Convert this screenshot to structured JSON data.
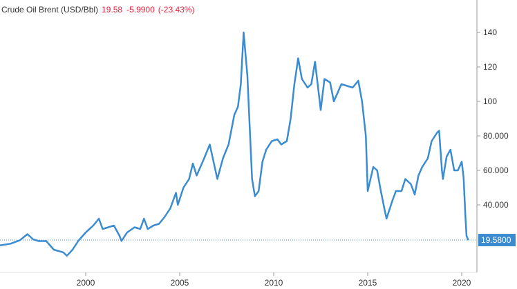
{
  "chart_data": {
    "type": "line",
    "title": "Crude Oil Brent (USD/Bbl)",
    "price": "19.58",
    "change": "-5.9900",
    "change_pct": "(-23.43%)",
    "last_label": "19.5800",
    "x": [
      1995.44,
      1996.0,
      1996.5,
      1996.9,
      1997.2,
      1997.5,
      1997.9,
      1998.3,
      1998.8,
      1999.0,
      1999.3,
      1999.6,
      2000.0,
      2000.4,
      2000.7,
      2000.9,
      2001.2,
      2001.5,
      2001.8,
      2001.9,
      2002.2,
      2002.6,
      2002.9,
      2003.1,
      2003.3,
      2003.6,
      2003.9,
      2004.2,
      2004.5,
      2004.8,
      2004.9,
      2005.2,
      2005.5,
      2005.7,
      2005.9,
      2006.3,
      2006.6,
      2006.9,
      2007.0,
      2007.3,
      2007.6,
      2007.9,
      2008.1,
      2008.25,
      2008.4,
      2008.6,
      2008.85,
      2009.0,
      2009.2,
      2009.4,
      2009.6,
      2009.9,
      2010.2,
      2010.4,
      2010.7,
      2010.9,
      2011.1,
      2011.3,
      2011.5,
      2011.8,
      2012.0,
      2012.2,
      2012.5,
      2012.7,
      2013.0,
      2013.2,
      2013.6,
      2013.9,
      2014.2,
      2014.5,
      2014.7,
      2014.9,
      2015.0,
      2015.3,
      2015.5,
      2015.7,
      2015.9,
      2016.0,
      2016.3,
      2016.5,
      2016.8,
      2017.0,
      2017.3,
      2017.5,
      2017.7,
      2017.9,
      2018.2,
      2018.4,
      2018.7,
      2018.8,
      2018.95,
      2019.0,
      2019.2,
      2019.4,
      2019.6,
      2019.8,
      2020.0,
      2020.1,
      2020.2,
      2020.26,
      2020.35
    ],
    "series": [
      {
        "name": "Crude Oil Brent",
        "color": "#3b8bd0",
        "values": [
          16.5,
          17.5,
          19.5,
          23,
          20,
          19,
          19,
          14,
          12.5,
          10.5,
          14,
          19,
          24,
          28,
          32,
          26,
          27,
          28,
          22,
          19,
          24,
          27,
          26,
          32,
          26,
          28,
          29,
          33,
          38,
          47,
          40,
          50,
          55,
          64,
          57,
          67,
          75,
          60,
          55,
          67,
          75,
          92,
          97,
          110,
          140,
          115,
          55,
          45,
          48,
          65,
          72,
          77,
          78,
          75,
          77,
          90,
          110,
          125,
          113,
          108,
          110,
          123,
          95,
          113,
          111,
          100,
          110,
          109,
          108,
          112,
          100,
          80,
          48,
          62,
          60,
          48,
          37,
          32,
          42,
          48,
          48,
          55,
          52,
          46,
          57,
          62,
          67,
          77,
          82,
          83,
          60,
          55,
          68,
          72,
          60,
          60,
          65,
          56,
          33,
          22,
          19.58
        ]
      }
    ],
    "xlim": [
      1995.44,
      2020.81
    ],
    "xticks": [
      2000,
      2005,
      2010,
      2015,
      2020
    ],
    "ylim": [
      0.8,
      158.8
    ],
    "yticks": [
      {
        "value": 40,
        "label": "40.000"
      },
      {
        "value": 60,
        "label": "60.000"
      },
      {
        "value": 80,
        "label": "80.000"
      },
      100,
      120,
      140
    ],
    "grid": false
  }
}
